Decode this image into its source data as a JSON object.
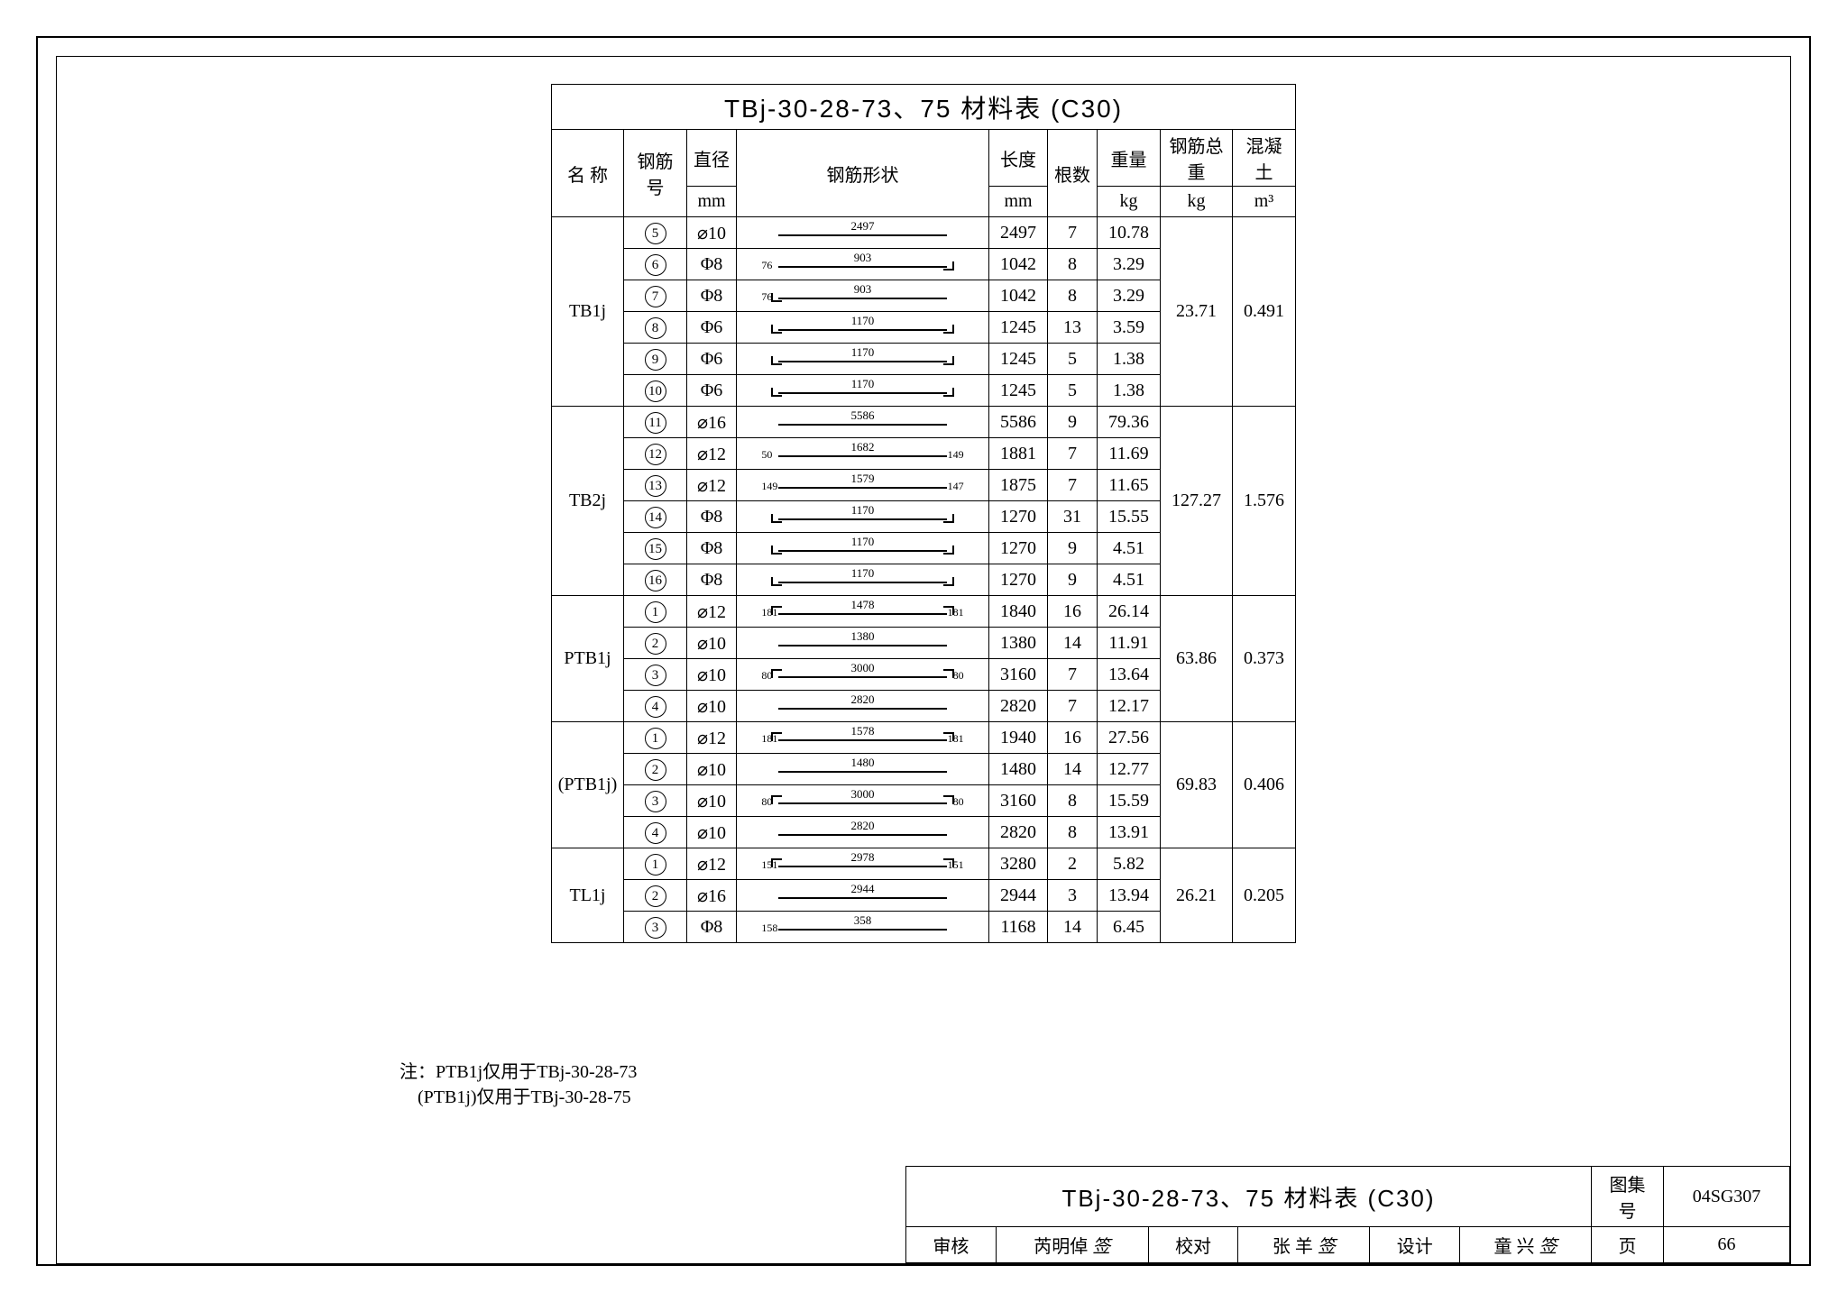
{
  "title": "TBj-30-28-73、75 材料表 (C30)",
  "columns": {
    "name": "名 称",
    "barno": "钢筋号",
    "dia": "直径",
    "dia_unit": "mm",
    "shape": "钢筋形状",
    "len": "长度",
    "len_unit": "mm",
    "qty": "根数",
    "wt": "重量",
    "wt_unit": "kg",
    "total": "钢筋总重",
    "total_unit": "kg",
    "conc": "混凝土",
    "conc_unit": "m³"
  },
  "groups": [
    {
      "name": "TB1j",
      "total": "23.71",
      "concrete": "0.491",
      "rows": [
        {
          "no": "5",
          "dia": "⌀10",
          "shape_main": "2497",
          "hooks": "none",
          "len": "2497",
          "qty": "7",
          "wt": "10.78"
        },
        {
          "no": "6",
          "dia": "Φ8",
          "shape_main": "903",
          "shape_side": "76",
          "hooks": "right",
          "len": "1042",
          "qty": "8",
          "wt": "3.29"
        },
        {
          "no": "7",
          "dia": "Φ8",
          "shape_main": "903",
          "shape_side": "76",
          "hooks": "left",
          "len": "1042",
          "qty": "8",
          "wt": "3.29"
        },
        {
          "no": "8",
          "dia": "Φ6",
          "shape_main": "1170",
          "hooks": "both",
          "len": "1245",
          "qty": "13",
          "wt": "3.59"
        },
        {
          "no": "9",
          "dia": "Φ6",
          "shape_main": "1170",
          "hooks": "both",
          "len": "1245",
          "qty": "5",
          "wt": "1.38"
        },
        {
          "no": "10",
          "dia": "Φ6",
          "shape_main": "1170",
          "hooks": "both",
          "len": "1245",
          "qty": "5",
          "wt": "1.38"
        }
      ]
    },
    {
      "name": "TB2j",
      "total": "127.27",
      "concrete": "1.576",
      "rows": [
        {
          "no": "11",
          "dia": "⌀16",
          "shape_main": "5586",
          "hooks": "none",
          "len": "5586",
          "qty": "9",
          "wt": "79.36"
        },
        {
          "no": "12",
          "dia": "⌀12",
          "shape_main": "1682",
          "shape_side": "50",
          "shape_side2": "149",
          "hooks": "bent",
          "len": "1881",
          "qty": "7",
          "wt": "11.69"
        },
        {
          "no": "13",
          "dia": "⌀12",
          "shape_main": "1579",
          "shape_side": "149",
          "shape_side2": "147",
          "hooks": "bent",
          "len": "1875",
          "qty": "7",
          "wt": "11.65"
        },
        {
          "no": "14",
          "dia": "Φ8",
          "shape_main": "1170",
          "hooks": "both",
          "len": "1270",
          "qty": "31",
          "wt": "15.55"
        },
        {
          "no": "15",
          "dia": "Φ8",
          "shape_main": "1170",
          "hooks": "both",
          "len": "1270",
          "qty": "9",
          "wt": "4.51"
        },
        {
          "no": "16",
          "dia": "Φ8",
          "shape_main": "1170",
          "hooks": "both",
          "len": "1270",
          "qty": "9",
          "wt": "4.51"
        }
      ]
    },
    {
      "name": "PTB1j",
      "total": "63.86",
      "concrete": "0.373",
      "rows": [
        {
          "no": "1",
          "dia": "⌀12",
          "shape_main": "1478",
          "shape_side": "181",
          "shape_side2": "181",
          "hooks": "vert",
          "len": "1840",
          "qty": "16",
          "wt": "26.14"
        },
        {
          "no": "2",
          "dia": "⌀10",
          "shape_main": "1380",
          "hooks": "none",
          "len": "1380",
          "qty": "14",
          "wt": "11.91"
        },
        {
          "no": "3",
          "dia": "⌀10",
          "shape_main": "3000",
          "shape_side": "80",
          "shape_side2": "80",
          "hooks": "vert",
          "len": "3160",
          "qty": "7",
          "wt": "13.64"
        },
        {
          "no": "4",
          "dia": "⌀10",
          "shape_main": "2820",
          "hooks": "none",
          "len": "2820",
          "qty": "7",
          "wt": "12.17"
        }
      ]
    },
    {
      "name": "(PTB1j)",
      "total": "69.83",
      "concrete": "0.406",
      "rows": [
        {
          "no": "1",
          "dia": "⌀12",
          "shape_main": "1578",
          "shape_side": "181",
          "shape_side2": "181",
          "hooks": "vert",
          "len": "1940",
          "qty": "16",
          "wt": "27.56"
        },
        {
          "no": "2",
          "dia": "⌀10",
          "shape_main": "1480",
          "hooks": "none",
          "len": "1480",
          "qty": "14",
          "wt": "12.77"
        },
        {
          "no": "3",
          "dia": "⌀10",
          "shape_main": "3000",
          "shape_side": "80",
          "shape_side2": "80",
          "hooks": "vert",
          "len": "3160",
          "qty": "8",
          "wt": "15.59"
        },
        {
          "no": "4",
          "dia": "⌀10",
          "shape_main": "2820",
          "hooks": "none",
          "len": "2820",
          "qty": "8",
          "wt": "13.91"
        }
      ]
    },
    {
      "name": "TL1j",
      "total": "26.21",
      "concrete": "0.205",
      "rows": [
        {
          "no": "1",
          "dia": "⌀12",
          "shape_main": "2978",
          "shape_side": "151",
          "shape_side2": "151",
          "hooks": "vert",
          "len": "3280",
          "qty": "2",
          "wt": "5.82"
        },
        {
          "no": "2",
          "dia": "⌀16",
          "shape_main": "2944",
          "hooks": "none",
          "len": "2944",
          "qty": "3",
          "wt": "13.94"
        },
        {
          "no": "3",
          "dia": "Φ8",
          "shape_main": "358",
          "shape_side": "158",
          "hooks": "stirrup",
          "len": "1168",
          "qty": "14",
          "wt": "6.45"
        }
      ]
    }
  ],
  "notes": {
    "prefix": "注：",
    "line1": "PTB1j仅用于TBj-30-28-73",
    "line2": "(PTB1j)仅用于TBj-30-28-75"
  },
  "titleblock": {
    "title": "TBj-30-28-73、75 材料表 (C30)",
    "drawing_set_label": "图集号",
    "drawing_set": "04SG307",
    "page_label": "页",
    "page": "66",
    "review_label": "审核",
    "reviewer": "芮明倬",
    "check_label": "校对",
    "checker": "张 羊",
    "design_label": "设计",
    "designer": "童 兴"
  }
}
